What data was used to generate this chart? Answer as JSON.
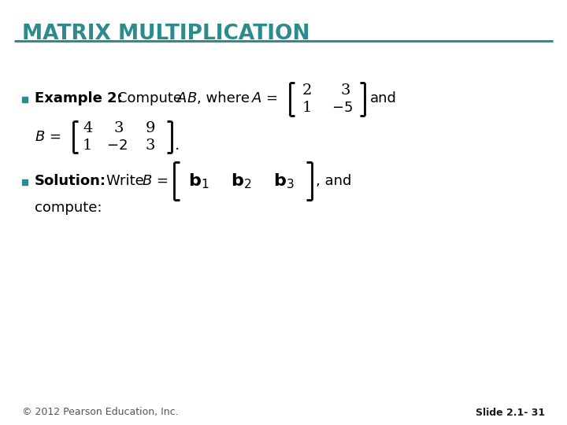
{
  "title": "MATRIX MULTIPLICATION",
  "title_color": "#2E8B8B",
  "title_fontsize": 19,
  "background_color": "#FFFFFF",
  "header_line_color": "#2E8B8B",
  "bullet_color": "#2E8B8B",
  "body_text_color": "#000000",
  "footer_left": "© 2012 Pearson Education, Inc.",
  "footer_right": "Slide 2.1- 31",
  "footer_fontsize": 9,
  "footer_color": "#555555",
  "footer_right_color": "#1a1a1a"
}
